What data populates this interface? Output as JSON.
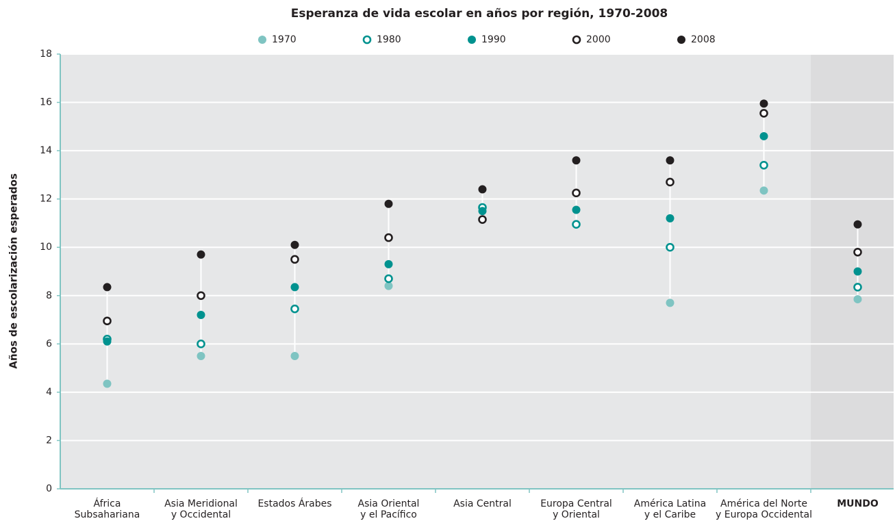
{
  "chart_data": {
    "type": "dot",
    "title": "Esperanza de vida escolar en años por región, 1970-2008",
    "y_label": "Años de escolarización esperados",
    "categories": [
      "África\nSubsahariana",
      "Asia Meridional\ny Occidental",
      "Estados Árabes",
      "Asia Oriental\ny el Pacífico",
      "Asia Central",
      "Europa Central\ny Oriental",
      "América Latina\ny el Caribe",
      "América del Norte\ny Europa Occidental",
      "MUNDO"
    ],
    "highlight": "MUNDO",
    "series": [
      {
        "name": "1970",
        "color": "#7fc4c2",
        "marker": "filled",
        "values": [
          4.35,
          5.5,
          5.5,
          8.4,
          null,
          null,
          7.7,
          12.35,
          7.85
        ]
      },
      {
        "name": "1980",
        "color": "#00928f",
        "marker": "hollow",
        "values": [
          6.2,
          6.0,
          7.45,
          8.7,
          11.65,
          10.95,
          10.0,
          13.4,
          8.35
        ]
      },
      {
        "name": "1990",
        "color": "#00928f",
        "marker": "filled",
        "values": [
          6.1,
          7.2,
          8.35,
          9.3,
          11.5,
          11.55,
          11.2,
          14.6,
          9.0
        ]
      },
      {
        "name": "2000",
        "color": "#231f20",
        "marker": "hollow",
        "values": [
          6.95,
          8.0,
          9.5,
          10.4,
          11.15,
          12.25,
          12.7,
          15.55,
          9.8
        ]
      },
      {
        "name": "2008",
        "color": "#231f20",
        "marker": "filled",
        "values": [
          8.35,
          9.7,
          10.1,
          11.8,
          12.4,
          13.6,
          13.6,
          15.95,
          10.95
        ]
      }
    ],
    "ylim": [
      0,
      18
    ],
    "yticks": [
      0,
      2,
      4,
      6,
      8,
      10,
      12,
      14,
      16,
      18
    ],
    "grid": true
  }
}
